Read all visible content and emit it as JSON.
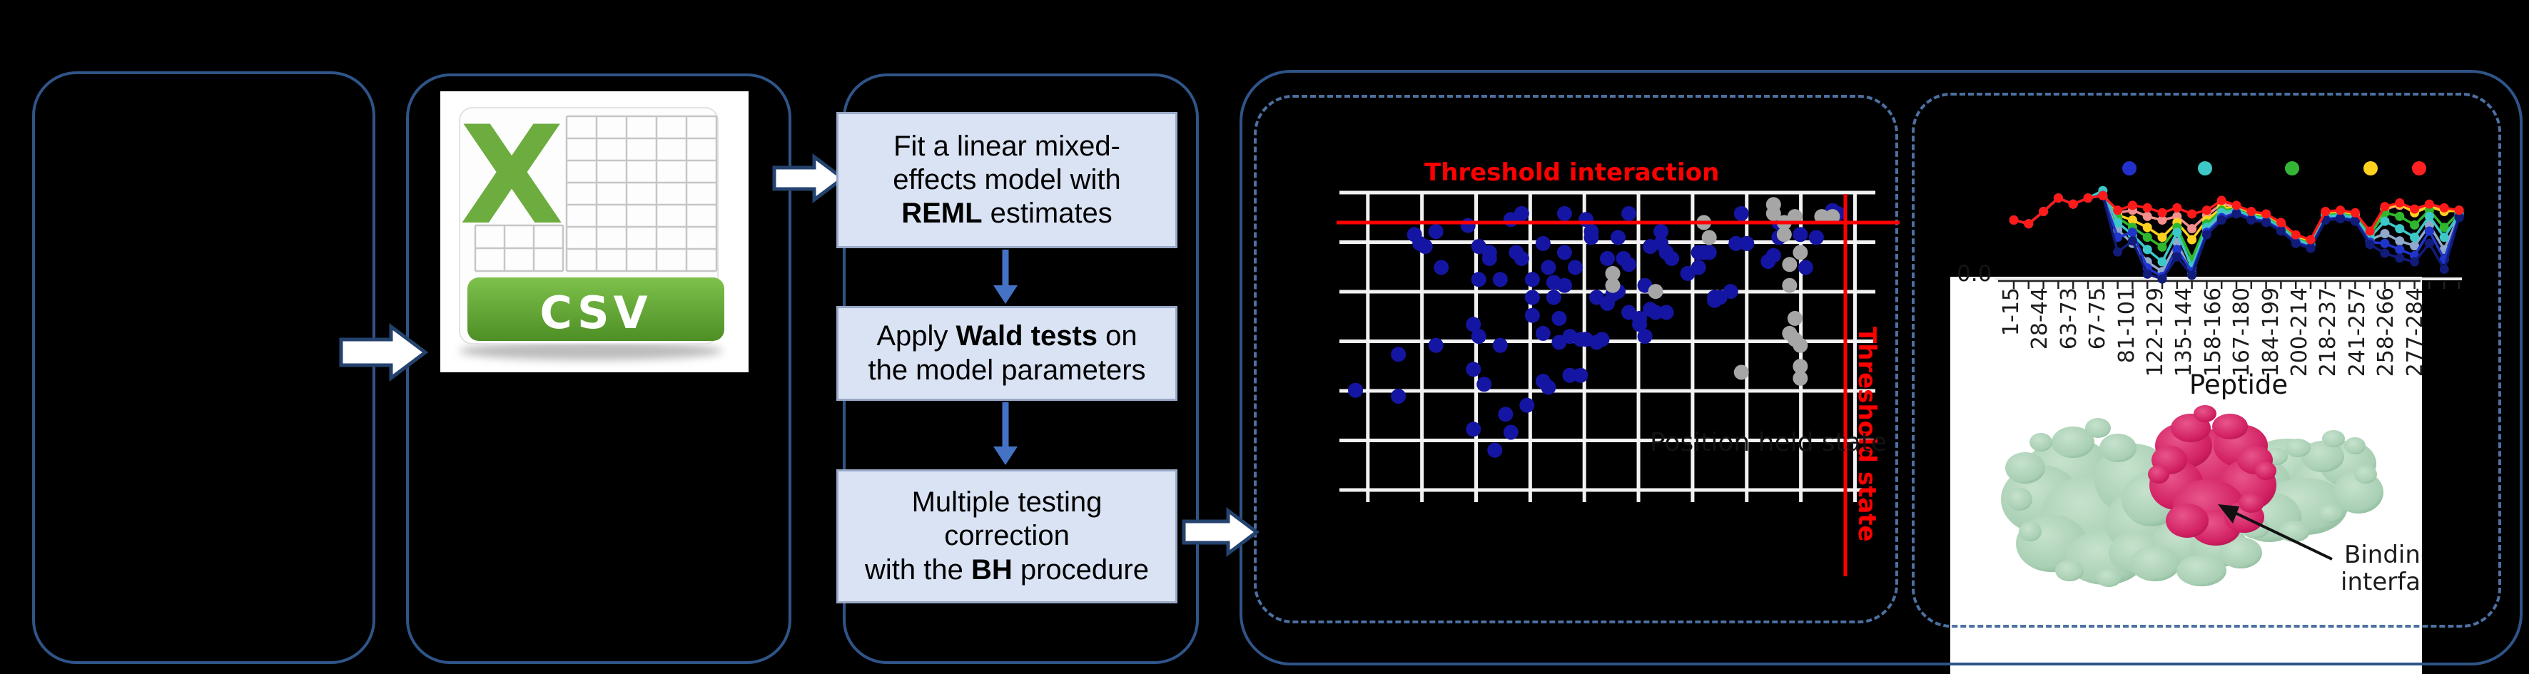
{
  "csv": {
    "x_logo": "X",
    "label": "CSV"
  },
  "workflow": {
    "steps": [
      {
        "name": "fit-lmm-step",
        "lines": [
          [
            {
              "t": "Fit a linear mixed-"
            }
          ],
          [
            {
              "t": "effects model with"
            }
          ],
          [
            {
              "t": "REML",
              "b": 1
            },
            {
              "t": " estimates"
            }
          ]
        ]
      },
      {
        "name": "wald-test-step",
        "lines": [
          [
            {
              "t": "Apply "
            },
            {
              "t": "Wald tests",
              "b": 1
            },
            {
              "t": " on"
            }
          ],
          [
            {
              "t": "the model parameters"
            }
          ]
        ]
      },
      {
        "name": "bh-correction-step",
        "lines": [
          [
            {
              "t": "Multiple testing"
            }
          ],
          [
            {
              "t": "correction"
            }
          ],
          [
            {
              "t": "with the "
            },
            {
              "t": "BH",
              "b": 1
            },
            {
              "t": " procedure"
            }
          ]
        ]
      }
    ]
  },
  "scatter": {
    "title": "Threshold interaction",
    "threshold_state_label": "Threshold state",
    "faint_label": "Position held state",
    "colors": {
      "points": "#1515a3",
      "excluded_points": "#a6a6a6",
      "threshold": "#ff0000",
      "grid": "#f2f2f2"
    },
    "grid": {
      "v_count": 10,
      "v_start_pct": 5.3,
      "v_step_pct": 10.1,
      "h_count": 7,
      "h_start_pct": 0,
      "h_step_pct": 16.55
    },
    "threshold_interaction_pct": 10,
    "threshold_state_pct": 94.4,
    "points_blue": [
      [
        3,
        66
      ],
      [
        11,
        54
      ],
      [
        11,
        68
      ],
      [
        14,
        14
      ],
      [
        15,
        17
      ],
      [
        16,
        18
      ],
      [
        18,
        13
      ],
      [
        18,
        51
      ],
      [
        19,
        25
      ],
      [
        24,
        11
      ],
      [
        25,
        44
      ],
      [
        25,
        59
      ],
      [
        25,
        79
      ],
      [
        26,
        18
      ],
      [
        26,
        29
      ],
      [
        26,
        48
      ],
      [
        27,
        64
      ],
      [
        28,
        20
      ],
      [
        28,
        22
      ],
      [
        29,
        86
      ],
      [
        30,
        29
      ],
      [
        30,
        51
      ],
      [
        31,
        74
      ],
      [
        32,
        80
      ],
      [
        32,
        9
      ],
      [
        33,
        20
      ],
      [
        34,
        7
      ],
      [
        34,
        22
      ],
      [
        35,
        71
      ],
      [
        36,
        29
      ],
      [
        36,
        35
      ],
      [
        36,
        41
      ],
      [
        38,
        17
      ],
      [
        38,
        47
      ],
      [
        38,
        63
      ],
      [
        39,
        65
      ],
      [
        39,
        25
      ],
      [
        40,
        30
      ],
      [
        40,
        35
      ],
      [
        41,
        42
      ],
      [
        41,
        50
      ],
      [
        42,
        7
      ],
      [
        42,
        20
      ],
      [
        42,
        31
      ],
      [
        43,
        48
      ],
      [
        43,
        61
      ],
      [
        44,
        25
      ],
      [
        45,
        49
      ],
      [
        45,
        61
      ],
      [
        46,
        9
      ],
      [
        46,
        49
      ],
      [
        47,
        15
      ],
      [
        47,
        13
      ],
      [
        48,
        50
      ],
      [
        48,
        35
      ],
      [
        49,
        49
      ],
      [
        50,
        22
      ],
      [
        50,
        37
      ],
      [
        51,
        34
      ],
      [
        52,
        33
      ],
      [
        52,
        15
      ],
      [
        53,
        22
      ],
      [
        54,
        7
      ],
      [
        54,
        24
      ],
      [
        54,
        40
      ],
      [
        56,
        42
      ],
      [
        56,
        44
      ],
      [
        57,
        31
      ],
      [
        57,
        48
      ],
      [
        58,
        18
      ],
      [
        58,
        39
      ],
      [
        59,
        40
      ],
      [
        60,
        13
      ],
      [
        60,
        17
      ],
      [
        61,
        20
      ],
      [
        61,
        40
      ],
      [
        62,
        22
      ],
      [
        65,
        27
      ],
      [
        67,
        20
      ],
      [
        67,
        25
      ],
      [
        68,
        20
      ],
      [
        69,
        20
      ],
      [
        70,
        35
      ],
      [
        70,
        36
      ],
      [
        71,
        35
      ],
      [
        73,
        33
      ],
      [
        74,
        17
      ],
      [
        75,
        7
      ],
      [
        76,
        17
      ],
      [
        80,
        23
      ],
      [
        81,
        21
      ],
      [
        82,
        10
      ],
      [
        82,
        15
      ],
      [
        86,
        14
      ],
      [
        87,
        25
      ],
      [
        89,
        15
      ],
      [
        92,
        6
      ],
      [
        93,
        7
      ]
    ],
    "points_gray": [
      [
        68,
        10
      ],
      [
        69,
        15
      ],
      [
        51,
        27
      ],
      [
        51,
        31
      ],
      [
        59,
        33
      ],
      [
        81,
        4
      ],
      [
        81,
        7
      ],
      [
        83,
        10
      ],
      [
        83,
        14
      ],
      [
        85,
        8
      ],
      [
        86,
        20
      ],
      [
        84,
        24
      ],
      [
        84,
        31
      ],
      [
        85,
        42
      ],
      [
        84,
        47
      ],
      [
        85,
        49
      ],
      [
        86,
        51
      ],
      [
        86,
        58
      ],
      [
        86,
        62
      ],
      [
        75,
        60
      ],
      [
        90,
        8
      ],
      [
        92,
        8
      ]
    ]
  },
  "uptake": {
    "y_zero_label": "0.0",
    "xlabel": "Peptide",
    "categories": [
      "1-15",
      "28-44",
      "63-73",
      "67-75",
      "81-101",
      "122-129",
      "135-144",
      "158-166",
      "167-180",
      "184-199",
      "200-214",
      "218-237",
      "241-257",
      "258-266",
      "277-284"
    ],
    "legend_colors": [
      "#2230cc",
      "#3ec8c8",
      "#35b535",
      "#ffd21f",
      "#ff2020"
    ],
    "series": [
      {
        "id": "steel",
        "color": "#8fa8cc",
        "values": [
          0.52,
          0.49,
          0.59,
          0.7,
          0.65,
          0.7,
          0.72,
          0.44,
          0.33,
          0.18,
          0.1,
          0.34,
          0.08,
          0.44,
          0.56,
          0.59,
          0.54,
          0.52,
          0.45,
          0.35,
          0.31,
          0.54,
          0.55,
          0.53,
          0.36,
          0.41,
          0.35,
          0.31,
          0.48,
          0.28,
          0.56
        ]
      },
      {
        "id": "salmon",
        "color": "#f4918e",
        "values": [
          0.52,
          0.49,
          0.59,
          0.7,
          0.65,
          0.7,
          0.72,
          0.58,
          0.6,
          0.55,
          0.52,
          0.55,
          0.45,
          0.56,
          0.65,
          0.63,
          0.58,
          0.56,
          0.49,
          0.39,
          0.35,
          0.58,
          0.59,
          0.57,
          0.42,
          0.61,
          0.64,
          0.59,
          0.63,
          0.6,
          0.59
        ]
      },
      {
        "id": "yellow",
        "color": "#ffd21f",
        "values": [
          0.52,
          0.49,
          0.59,
          0.7,
          0.65,
          0.7,
          0.72,
          0.56,
          0.52,
          0.46,
          0.38,
          0.5,
          0.36,
          0.52,
          0.62,
          0.62,
          0.57,
          0.55,
          0.48,
          0.38,
          0.34,
          0.57,
          0.58,
          0.56,
          0.42,
          0.62,
          0.65,
          0.58,
          0.63,
          0.59,
          0.6
        ]
      },
      {
        "id": "green",
        "color": "#2fb82f",
        "values": [
          0.52,
          0.49,
          0.59,
          0.7,
          0.65,
          0.7,
          0.72,
          0.54,
          0.46,
          0.38,
          0.3,
          0.46,
          0.2,
          0.49,
          0.6,
          0.61,
          0.56,
          0.54,
          0.47,
          0.37,
          0.33,
          0.56,
          0.57,
          0.55,
          0.4,
          0.58,
          0.55,
          0.48,
          0.6,
          0.46,
          0.58
        ]
      },
      {
        "id": "cyan",
        "color": "#3cc8c8",
        "values": [
          0.52,
          0.49,
          0.59,
          0.7,
          0.65,
          0.7,
          0.76,
          0.5,
          0.4,
          0.28,
          0.18,
          0.42,
          0.14,
          0.46,
          0.58,
          0.6,
          0.55,
          0.53,
          0.46,
          0.36,
          0.32,
          0.55,
          0.56,
          0.54,
          0.38,
          0.51,
          0.45,
          0.38,
          0.55,
          0.38,
          0.57
        ]
      },
      {
        "id": "blue",
        "color": "#1f35cc",
        "values": [
          0.52,
          0.49,
          0.59,
          0.7,
          0.65,
          0.7,
          0.72,
          0.38,
          0.42,
          0.13,
          0.06,
          0.28,
          0.1,
          0.42,
          0.54,
          0.58,
          0.53,
          0.51,
          0.44,
          0.34,
          0.3,
          0.53,
          0.54,
          0.52,
          0.34,
          0.33,
          0.28,
          0.23,
          0.43,
          0.2,
          0.55
        ]
      },
      {
        "id": "navy",
        "color": "#111b7a",
        "values": [
          0.52,
          0.49,
          0.59,
          0.7,
          0.65,
          0.7,
          0.72,
          0.26,
          0.35,
          0.08,
          0.04,
          0.22,
          0.07,
          0.4,
          0.52,
          0.57,
          0.52,
          0.5,
          0.43,
          0.33,
          0.29,
          0.52,
          0.53,
          0.51,
          0.32,
          0.25,
          0.21,
          0.18,
          0.33,
          0.12,
          0.54
        ]
      },
      {
        "id": "red",
        "color": "#ff1a1a",
        "values": [
          0.52,
          0.49,
          0.59,
          0.7,
          0.65,
          0.7,
          0.72,
          0.6,
          0.64,
          0.62,
          0.58,
          0.62,
          0.57,
          0.6,
          0.68,
          0.64,
          0.59,
          0.57,
          0.5,
          0.4,
          0.36,
          0.59,
          0.6,
          0.58,
          0.43,
          0.63,
          0.66,
          0.61,
          0.65,
          0.62,
          0.6
        ]
      }
    ]
  },
  "protein": {
    "label_line1": "Binding",
    "label_line2": "interface",
    "surface_color": "#a9cfb4",
    "interface_color": "#d11f62"
  }
}
